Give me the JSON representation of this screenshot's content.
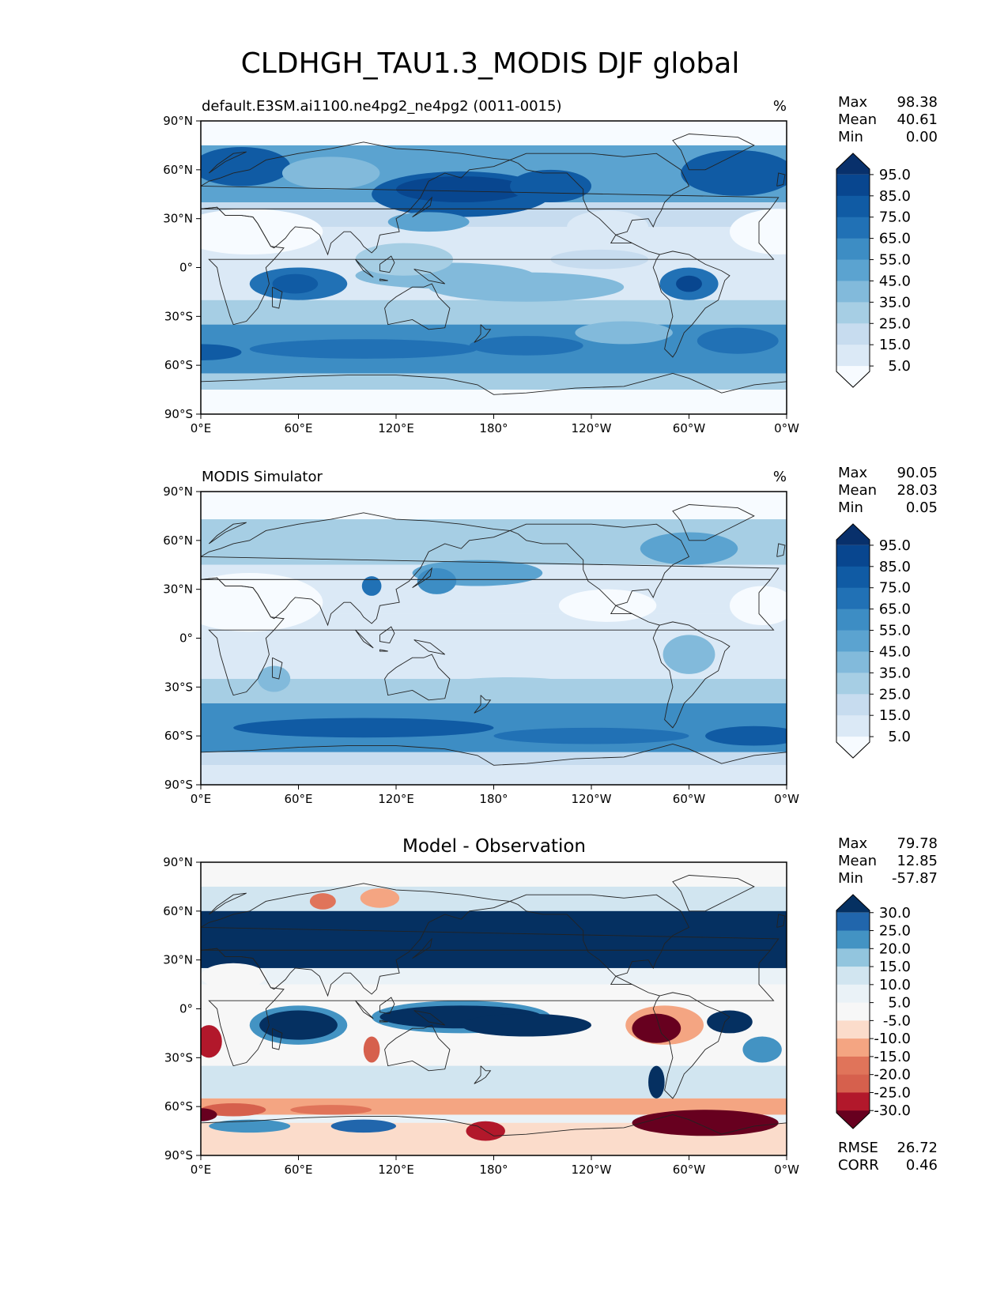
{
  "title": "CLDHGH_TAU1.3_MODIS DJF global",
  "axes": {
    "lat_ticks": [
      "90°N",
      "60°N",
      "30°N",
      "0°",
      "30°S",
      "60°S",
      "90°S"
    ],
    "lon_ticks": [
      "0°E",
      "60°E",
      "120°E",
      "180°",
      "120°W",
      "60°W",
      "0°W"
    ]
  },
  "stat_labels": {
    "max": "Max",
    "mean": "Mean",
    "min": "Min",
    "rmse": "RMSE",
    "corr": "CORR"
  },
  "panels": [
    {
      "id": "test",
      "left_title": "default.E3SM.ai1100.ne4pg2_ne4pg2 (0011-0015)",
      "center_title": "",
      "unit": "%",
      "stats": {
        "max": "98.38",
        "mean": "40.61",
        "min": "0.00"
      },
      "colorbar": {
        "labels": [
          "95.0",
          "85.0",
          "75.0",
          "65.0",
          "55.0",
          "45.0",
          "35.0",
          "25.0",
          "15.0",
          "5.0"
        ],
        "colors": [
          "#08306b",
          "#08468f",
          "#105ba4",
          "#2171b5",
          "#3d8dc4",
          "#5ba3d0",
          "#82badb",
          "#a6cee4",
          "#c7dcef",
          "#dbe9f6",
          "#f7fbff"
        ]
      },
      "field_style": "model"
    },
    {
      "id": "reference",
      "left_title": "MODIS Simulator",
      "center_title": "",
      "unit": "%",
      "stats": {
        "max": "90.05",
        "mean": "28.03",
        "min": "0.05"
      },
      "colorbar": {
        "labels": [
          "95.0",
          "85.0",
          "75.0",
          "65.0",
          "55.0",
          "45.0",
          "35.0",
          "25.0",
          "15.0",
          "5.0"
        ],
        "colors": [
          "#08306b",
          "#08468f",
          "#105ba4",
          "#2171b5",
          "#3d8dc4",
          "#5ba3d0",
          "#82badb",
          "#a6cee4",
          "#c7dcef",
          "#dbe9f6",
          "#f7fbff"
        ]
      },
      "field_style": "obs"
    },
    {
      "id": "diff",
      "left_title": "",
      "center_title": "Model - Observation",
      "unit": "",
      "stats": {
        "max": "79.78",
        "mean": "12.85",
        "min": "-57.87"
      },
      "rmse": "26.72",
      "corr": "0.46",
      "colorbar": {
        "labels": [
          "30.0",
          "25.0",
          "20.0",
          "15.0",
          "10.0",
          "5.0",
          "-5.0",
          "-10.0",
          "-15.0",
          "-20.0",
          "-25.0",
          "-30.0"
        ],
        "colors": [
          "#053061",
          "#2166ac",
          "#4393c3",
          "#92c5de",
          "#d1e5f0",
          "#eaf2f7",
          "#f7f7f7",
          "#fbdccb",
          "#f4a582",
          "#e0745a",
          "#d6604d",
          "#b2182b",
          "#67001f"
        ]
      },
      "field_style": "diff"
    }
  ]
}
